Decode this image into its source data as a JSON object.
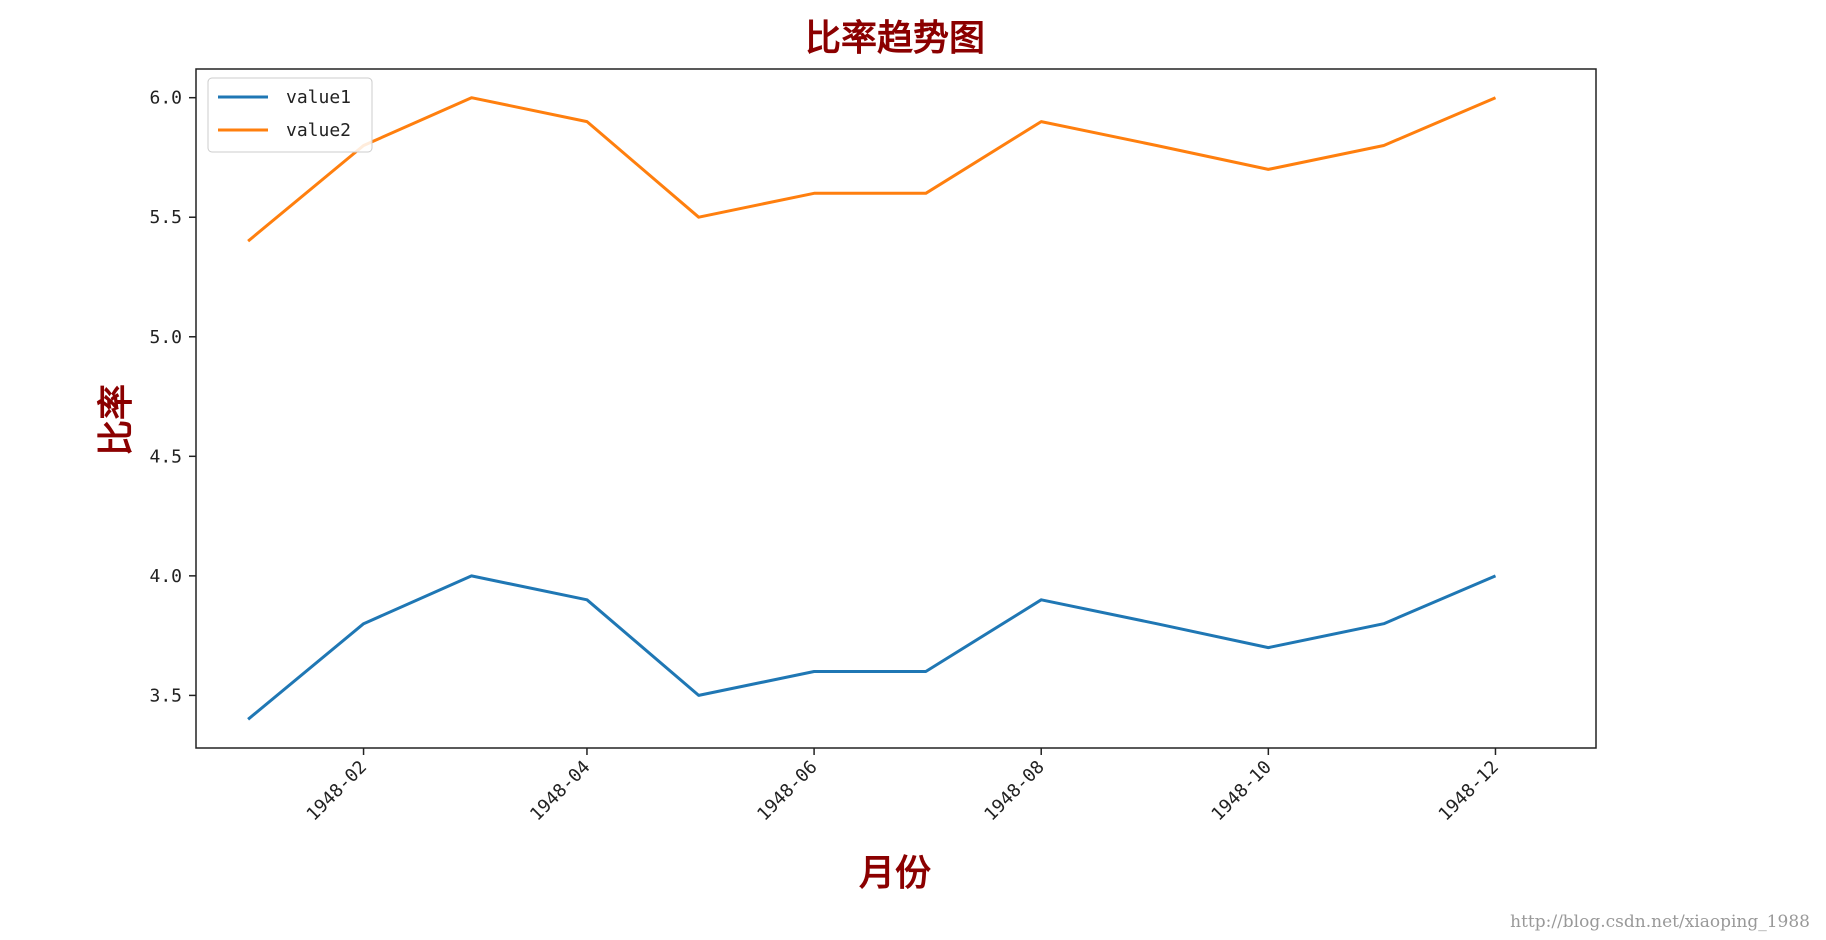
{
  "chart_data": {
    "type": "line",
    "title": "比率趋势图",
    "xlabel": "月份",
    "ylabel": "比率",
    "x": [
      "1948-01",
      "1948-02",
      "1948-03",
      "1948-04",
      "1948-05",
      "1948-06",
      "1948-07",
      "1948-08",
      "1948-09",
      "1948-10",
      "1948-11",
      "1948-12"
    ],
    "x_ticks": [
      "1948-02",
      "1948-04",
      "1948-06",
      "1948-08",
      "1948-10",
      "1948-12"
    ],
    "y_ticks": [
      3.5,
      4.0,
      4.5,
      5.0,
      5.5,
      6.0
    ],
    "ylim": [
      3.28,
      6.12
    ],
    "xlim": [
      "1947-12-18",
      "1948-12-28"
    ],
    "grid": false,
    "legend_position": "top-left",
    "series": [
      {
        "name": "value1",
        "color": "#1f77b4",
        "values": [
          3.4,
          3.8,
          4.0,
          3.9,
          3.5,
          3.6,
          3.6,
          3.9,
          3.8,
          3.7,
          3.8,
          4.0
        ]
      },
      {
        "name": "value2",
        "color": "#ff7f0e",
        "values": [
          5.4,
          5.8,
          6.0,
          5.9,
          5.5,
          5.6,
          5.6,
          5.9,
          5.8,
          5.7,
          5.8,
          6.0
        ]
      }
    ]
  },
  "watermark": "http://blog.csdn.net/xiaoping_1988"
}
